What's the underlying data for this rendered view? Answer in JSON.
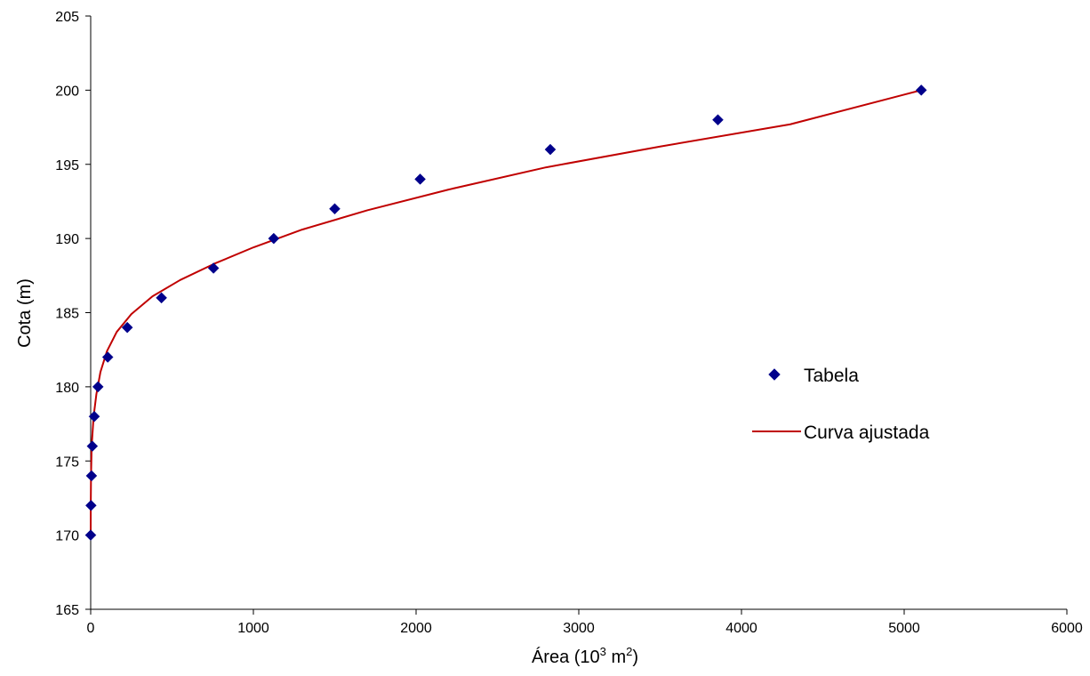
{
  "chart_data": {
    "type": "scatter",
    "title": "",
    "xlabel": {
      "base": "Área (10",
      "sup1": "3",
      "mid": " m",
      "sup2": "2",
      "end": ")"
    },
    "ylabel": "Cota (m)",
    "xlim": [
      0,
      6000
    ],
    "ylim": [
      165,
      205
    ],
    "xticks": [
      0,
      1000,
      2000,
      3000,
      4000,
      5000,
      6000
    ],
    "yticks": [
      165,
      170,
      175,
      180,
      185,
      190,
      195,
      200,
      205
    ],
    "grid": false,
    "legend_position": "right",
    "series": [
      {
        "name": "Tabela",
        "kind": "markers",
        "marker": "diamond",
        "color": "#00008B",
        "points": [
          {
            "x": 0,
            "y": 170
          },
          {
            "x": 2,
            "y": 172
          },
          {
            "x": 5,
            "y": 174
          },
          {
            "x": 10,
            "y": 176
          },
          {
            "x": 22,
            "y": 178
          },
          {
            "x": 45,
            "y": 180
          },
          {
            "x": 105,
            "y": 182
          },
          {
            "x": 225,
            "y": 184
          },
          {
            "x": 435,
            "y": 186
          },
          {
            "x": 755,
            "y": 188
          },
          {
            "x": 1125,
            "y": 190
          },
          {
            "x": 1500,
            "y": 192
          },
          {
            "x": 2025,
            "y": 194
          },
          {
            "x": 2825,
            "y": 196
          },
          {
            "x": 3855,
            "y": 198
          },
          {
            "x": 5105,
            "y": 200
          }
        ]
      },
      {
        "name": "Curva ajustada",
        "kind": "line",
        "color": "#C00000",
        "points": [
          {
            "x": 0,
            "y": 170
          },
          {
            "x": 0.5,
            "y": 172
          },
          {
            "x": 2,
            "y": 174
          },
          {
            "x": 6,
            "y": 176
          },
          {
            "x": 18,
            "y": 178
          },
          {
            "x": 35,
            "y": 179.5
          },
          {
            "x": 60,
            "y": 181
          },
          {
            "x": 100,
            "y": 182.4
          },
          {
            "x": 160,
            "y": 183.7
          },
          {
            "x": 250,
            "y": 184.9
          },
          {
            "x": 380,
            "y": 186.1
          },
          {
            "x": 550,
            "y": 187.2
          },
          {
            "x": 760,
            "y": 188.3
          },
          {
            "x": 1000,
            "y": 189.4
          },
          {
            "x": 1300,
            "y": 190.6
          },
          {
            "x": 1700,
            "y": 191.9
          },
          {
            "x": 2200,
            "y": 193.3
          },
          {
            "x": 2800,
            "y": 194.8
          },
          {
            "x": 3500,
            "y": 196.2
          },
          {
            "x": 4300,
            "y": 197.7
          },
          {
            "x": 5105,
            "y": 200
          }
        ]
      }
    ]
  }
}
